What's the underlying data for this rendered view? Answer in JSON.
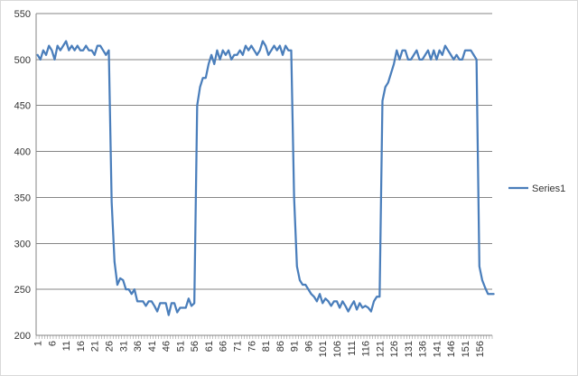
{
  "chart_data": {
    "type": "line",
    "title": "",
    "xlabel": "",
    "ylabel": "",
    "ylim": [
      200,
      550
    ],
    "y_ticks": [
      200,
      250,
      300,
      350,
      400,
      450,
      500,
      550
    ],
    "x_ticks": [
      1,
      6,
      11,
      16,
      21,
      26,
      31,
      36,
      41,
      46,
      51,
      56,
      61,
      66,
      71,
      76,
      81,
      86,
      91,
      96,
      101,
      106,
      111,
      116,
      121,
      126,
      131,
      136,
      141,
      146,
      151,
      156
    ],
    "x_range": [
      1,
      160
    ],
    "grid": "horizontal",
    "legend_position": "right",
    "series": [
      {
        "name": "Series1",
        "color": "#4a7ebb",
        "values": [
          505,
          500,
          510,
          505,
          515,
          510,
          500,
          515,
          510,
          515,
          520,
          510,
          515,
          510,
          515,
          510,
          510,
          515,
          510,
          510,
          505,
          515,
          515,
          510,
          505,
          510,
          345,
          280,
          255,
          262,
          260,
          250,
          250,
          245,
          250,
          237,
          237,
          237,
          232,
          237,
          237,
          232,
          226,
          235,
          235,
          235,
          222,
          235,
          235,
          225,
          230,
          230,
          230,
          240,
          232,
          235,
          450,
          470,
          480,
          480,
          495,
          505,
          495,
          510,
          500,
          510,
          505,
          510,
          500,
          505,
          505,
          510,
          505,
          515,
          510,
          515,
          510,
          505,
          510,
          520,
          515,
          505,
          510,
          515,
          510,
          515,
          505,
          515,
          510,
          510,
          350,
          275,
          260,
          255,
          255,
          250,
          245,
          242,
          237,
          245,
          235,
          240,
          237,
          232,
          237,
          237,
          230,
          237,
          232,
          226,
          232,
          237,
          228,
          235,
          230,
          232,
          230,
          226,
          237,
          242,
          242,
          455,
          470,
          475,
          485,
          495,
          510,
          500,
          510,
          510,
          500,
          500,
          505,
          510,
          500,
          500,
          505,
          510,
          500,
          510,
          500,
          510,
          505,
          515,
          510,
          505,
          500,
          505,
          500,
          500,
          510,
          510,
          510,
          505,
          500,
          275,
          260,
          252,
          245,
          245,
          245
        ]
      }
    ]
  }
}
